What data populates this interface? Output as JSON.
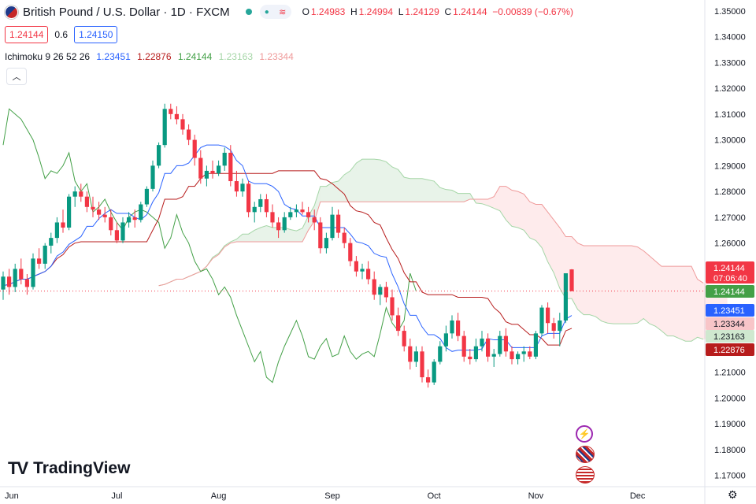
{
  "header": {
    "symbol_title": "British Pound / U.S. Dollar · 1D · FXCM",
    "open_label": "O",
    "open": "1.24983",
    "high_label": "H",
    "high": "1.24994",
    "low_label": "L",
    "low": "1.24129",
    "close_label": "C",
    "close": "1.24144",
    "change": "−0.00839 (−0.67%)",
    "sell_price": "1.24144",
    "spread": "0.6",
    "buy_price": "1.24150"
  },
  "indicator": {
    "name": "Ichimoku 9 26 52 26",
    "v1": "1.23451",
    "v2": "1.22876",
    "v3": "1.24144",
    "v4": "1.23163",
    "v5": "1.23344",
    "colors": {
      "conversion": "#2962ff",
      "base": "#b71c1c",
      "lagging": "#43a047",
      "spanA": "#a5d6a7",
      "spanB": "#ef9a9a"
    }
  },
  "brand": "TradingView",
  "colors": {
    "up": "#089981",
    "down": "#f23645",
    "axis_text": "#131722"
  },
  "price_labels": {
    "last": "1.24144",
    "countdown": "07:06:40",
    "close_tag": "1.24144",
    "conversion_tag": "1.23451",
    "spanB_tag": "1.23344",
    "spanA_tag": "1.23163",
    "base_tag": "1.22876"
  },
  "chart_data": {
    "type": "candlestick",
    "y_ticks": [
      "1.35000",
      "1.34000",
      "1.33000",
      "1.32000",
      "1.31000",
      "1.30000",
      "1.29000",
      "1.28000",
      "1.27000",
      "1.26000",
      "1.25000",
      "1.24000",
      "1.23000",
      "1.22000",
      "1.21000",
      "1.20000",
      "1.19000",
      "1.18000",
      "1.17000"
    ],
    "y_range": [
      1.1656,
      1.3542
    ],
    "x_ticks": [
      "Jun",
      "Jul",
      "Aug",
      "Sep",
      "Oct",
      "Nov",
      "Dec"
    ],
    "candles": [
      [
        1.242,
        1.249,
        1.238,
        1.247
      ],
      [
        1.247,
        1.25,
        1.24,
        1.243
      ],
      [
        1.243,
        1.252,
        1.241,
        1.25
      ],
      [
        1.25,
        1.254,
        1.244,
        1.246
      ],
      [
        1.246,
        1.248,
        1.24,
        1.243
      ],
      [
        1.243,
        1.256,
        1.242,
        1.254
      ],
      [
        1.254,
        1.258,
        1.25,
        1.252
      ],
      [
        1.252,
        1.26,
        1.25,
        1.259
      ],
      [
        1.259,
        1.264,
        1.256,
        1.262
      ],
      [
        1.262,
        1.27,
        1.26,
        1.268
      ],
      [
        1.268,
        1.273,
        1.264,
        1.266
      ],
      [
        1.266,
        1.279,
        1.265,
        1.278
      ],
      [
        1.278,
        1.282,
        1.274,
        1.28
      ],
      [
        1.28,
        1.283,
        1.276,
        1.278
      ],
      [
        1.278,
        1.28,
        1.272,
        1.274
      ],
      [
        1.274,
        1.278,
        1.27,
        1.273
      ],
      [
        1.273,
        1.276,
        1.269,
        1.271
      ],
      [
        1.271,
        1.274,
        1.268,
        1.27
      ],
      [
        1.27,
        1.273,
        1.263,
        1.265
      ],
      [
        1.265,
        1.268,
        1.26,
        1.261
      ],
      [
        1.261,
        1.27,
        1.26,
        1.268
      ],
      [
        1.268,
        1.272,
        1.266,
        1.27
      ],
      [
        1.27,
        1.273,
        1.266,
        1.269
      ],
      [
        1.269,
        1.276,
        1.268,
        1.275
      ],
      [
        1.275,
        1.282,
        1.274,
        1.281
      ],
      [
        1.281,
        1.292,
        1.28,
        1.29
      ],
      [
        1.29,
        1.299,
        1.289,
        1.298
      ],
      [
        1.298,
        1.314,
        1.297,
        1.312
      ],
      [
        1.312,
        1.314,
        1.308,
        1.31
      ],
      [
        1.31,
        1.313,
        1.306,
        1.308
      ],
      [
        1.308,
        1.31,
        1.302,
        1.304
      ],
      [
        1.304,
        1.306,
        1.298,
        1.3
      ],
      [
        1.3,
        1.302,
        1.29,
        1.293
      ],
      [
        1.293,
        1.296,
        1.283,
        1.285
      ],
      [
        1.285,
        1.29,
        1.282,
        1.288
      ],
      [
        1.288,
        1.292,
        1.285,
        1.287
      ],
      [
        1.287,
        1.292,
        1.286,
        1.29
      ],
      [
        1.29,
        1.297,
        1.288,
        1.295
      ],
      [
        1.295,
        1.298,
        1.282,
        1.284
      ],
      [
        1.284,
        1.288,
        1.278,
        1.28
      ],
      [
        1.28,
        1.285,
        1.278,
        1.283
      ],
      [
        1.283,
        1.284,
        1.27,
        1.272
      ],
      [
        1.272,
        1.276,
        1.268,
        1.274
      ],
      [
        1.274,
        1.279,
        1.272,
        1.277
      ],
      [
        1.277,
        1.279,
        1.27,
        1.272
      ],
      [
        1.272,
        1.275,
        1.266,
        1.268
      ],
      [
        1.268,
        1.27,
        1.262,
        1.265
      ],
      [
        1.265,
        1.272,
        1.264,
        1.27
      ],
      [
        1.27,
        1.274,
        1.269,
        1.272
      ],
      [
        1.272,
        1.275,
        1.27,
        1.273
      ],
      [
        1.273,
        1.276,
        1.271,
        1.272
      ],
      [
        1.272,
        1.274,
        1.268,
        1.27
      ],
      [
        1.27,
        1.273,
        1.265,
        1.268
      ],
      [
        1.268,
        1.27,
        1.256,
        1.258
      ],
      [
        1.258,
        1.264,
        1.256,
        1.262
      ],
      [
        1.262,
        1.274,
        1.261,
        1.271
      ],
      [
        1.271,
        1.273,
        1.262,
        1.264
      ],
      [
        1.264,
        1.266,
        1.258,
        1.26
      ],
      [
        1.26,
        1.262,
        1.251,
        1.253
      ],
      [
        1.253,
        1.255,
        1.247,
        1.249
      ],
      [
        1.249,
        1.252,
        1.246,
        1.25
      ],
      [
        1.25,
        1.253,
        1.244,
        1.246
      ],
      [
        1.246,
        1.249,
        1.238,
        1.24
      ],
      [
        1.24,
        1.244,
        1.236,
        1.243
      ],
      [
        1.243,
        1.245,
        1.237,
        1.239
      ],
      [
        1.239,
        1.242,
        1.23,
        1.232
      ],
      [
        1.232,
        1.235,
        1.224,
        1.226
      ],
      [
        1.226,
        1.228,
        1.218,
        1.22
      ],
      [
        1.22,
        1.223,
        1.211,
        1.214
      ],
      [
        1.214,
        1.22,
        1.212,
        1.218
      ],
      [
        1.218,
        1.22,
        1.206,
        1.208
      ],
      [
        1.208,
        1.211,
        1.204,
        1.206
      ],
      [
        1.206,
        1.215,
        1.205,
        1.214
      ],
      [
        1.214,
        1.222,
        1.213,
        1.22
      ],
      [
        1.22,
        1.228,
        1.218,
        1.225
      ],
      [
        1.225,
        1.232,
        1.223,
        1.23
      ],
      [
        1.23,
        1.233,
        1.222,
        1.224
      ],
      [
        1.224,
        1.226,
        1.214,
        1.216
      ],
      [
        1.216,
        1.219,
        1.213,
        1.215
      ],
      [
        1.215,
        1.223,
        1.214,
        1.22
      ],
      [
        1.22,
        1.226,
        1.218,
        1.223
      ],
      [
        1.223,
        1.225,
        1.214,
        1.216
      ],
      [
        1.216,
        1.219,
        1.212,
        1.217
      ],
      [
        1.217,
        1.226,
        1.216,
        1.224
      ],
      [
        1.224,
        1.227,
        1.216,
        1.218
      ],
      [
        1.218,
        1.22,
        1.213,
        1.215
      ],
      [
        1.215,
        1.218,
        1.213,
        1.217
      ],
      [
        1.217,
        1.22,
        1.214,
        1.218
      ],
      [
        1.218,
        1.22,
        1.215,
        1.216
      ],
      [
        1.216,
        1.226,
        1.215,
        1.225
      ],
      [
        1.225,
        1.236,
        1.224,
        1.235
      ],
      [
        1.235,
        1.237,
        1.225,
        1.229
      ],
      [
        1.229,
        1.231,
        1.223,
        1.226
      ],
      [
        1.226,
        1.233,
        1.22,
        1.23
      ],
      [
        1.23,
        1.248,
        1.229,
        1.2483
      ],
      [
        1.2498,
        1.2499,
        1.2413,
        1.2414
      ]
    ]
  }
}
